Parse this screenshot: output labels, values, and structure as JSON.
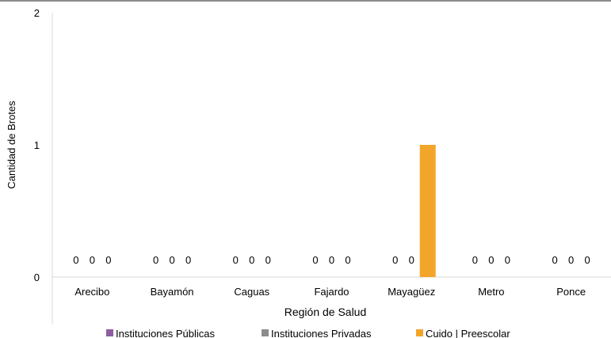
{
  "chart_data": {
    "type": "bar",
    "categories": [
      "Arecibo",
      "Bayamón",
      "Caguas",
      "Fajardo",
      "Mayagüez",
      "Metro",
      "Ponce"
    ],
    "series": [
      {
        "name": "Instituciones Públicas",
        "values": [
          0,
          0,
          0,
          0,
          0,
          0,
          0
        ],
        "color": "#8e5ea2"
      },
      {
        "name": "Instituciones Privadas",
        "values": [
          0,
          0,
          0,
          0,
          0,
          0,
          0
        ],
        "color": "#8c8c8c"
      },
      {
        "name": "Cuido | Preescolar",
        "values": [
          0,
          0,
          0,
          0,
          1,
          0,
          0
        ],
        "color": "#f2a52a"
      }
    ],
    "xlabel": "Región de Salud",
    "ylabel": "Cantidad de Brotes",
    "ylim": [
      0,
      2
    ],
    "yticks": [
      0,
      1,
      2
    ],
    "legend_position": "bottom",
    "data_labels_zero_hidden": [
      [
        4,
        2
      ]
    ]
  }
}
